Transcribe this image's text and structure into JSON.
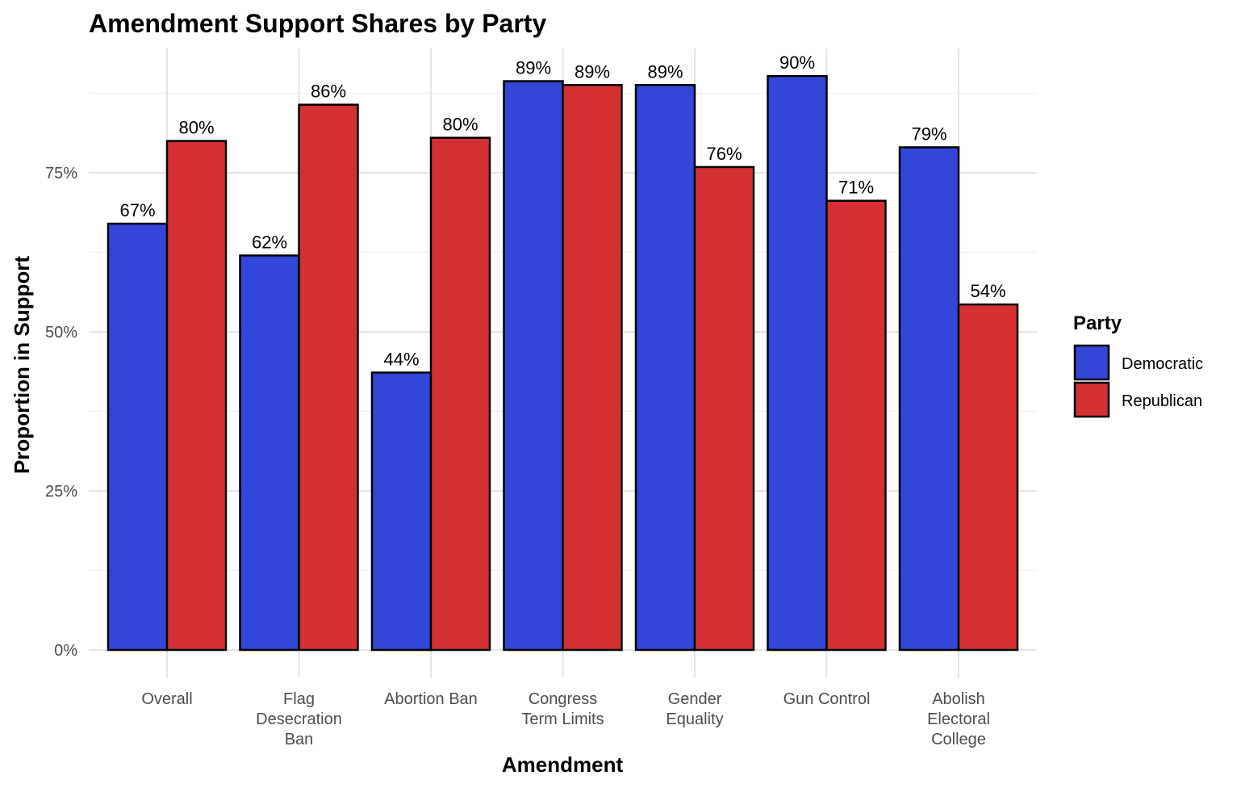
{
  "chart_data": {
    "type": "bar",
    "title": "Amendment Support Shares by Party",
    "xlabel": "Amendment",
    "ylabel": "Proportion in Support",
    "ylim": [
      0,
      0.95
    ],
    "yticks": [
      0,
      0.25,
      0.5,
      0.75
    ],
    "ytick_labels": [
      "0%",
      "25%",
      "50%",
      "75%"
    ],
    "grid": true,
    "legend": {
      "title": "Party",
      "placement": "right"
    },
    "categories": [
      [
        "Overall"
      ],
      [
        "Flag",
        "Desecration",
        "Ban"
      ],
      [
        "Abortion Ban"
      ],
      [
        "Congress",
        "Term Limits"
      ],
      [
        "Gender",
        "Equality"
      ],
      [
        "Gun Control"
      ],
      [
        "Abolish",
        "Electoral",
        "College"
      ]
    ],
    "series": [
      {
        "name": "Democratic",
        "color": "#3246D8",
        "values": [
          0.67,
          0.62,
          0.436,
          0.894,
          0.888,
          0.902,
          0.79
        ],
        "labels": [
          "67%",
          "62%",
          "44%",
          "89%",
          "89%",
          "90%",
          "79%"
        ]
      },
      {
        "name": "Republican",
        "color": "#D43034",
        "values": [
          0.8,
          0.857,
          0.805,
          0.888,
          0.759,
          0.706,
          0.543
        ],
        "labels": [
          "80%",
          "86%",
          "80%",
          "89%",
          "76%",
          "71%",
          "54%"
        ]
      }
    ]
  }
}
